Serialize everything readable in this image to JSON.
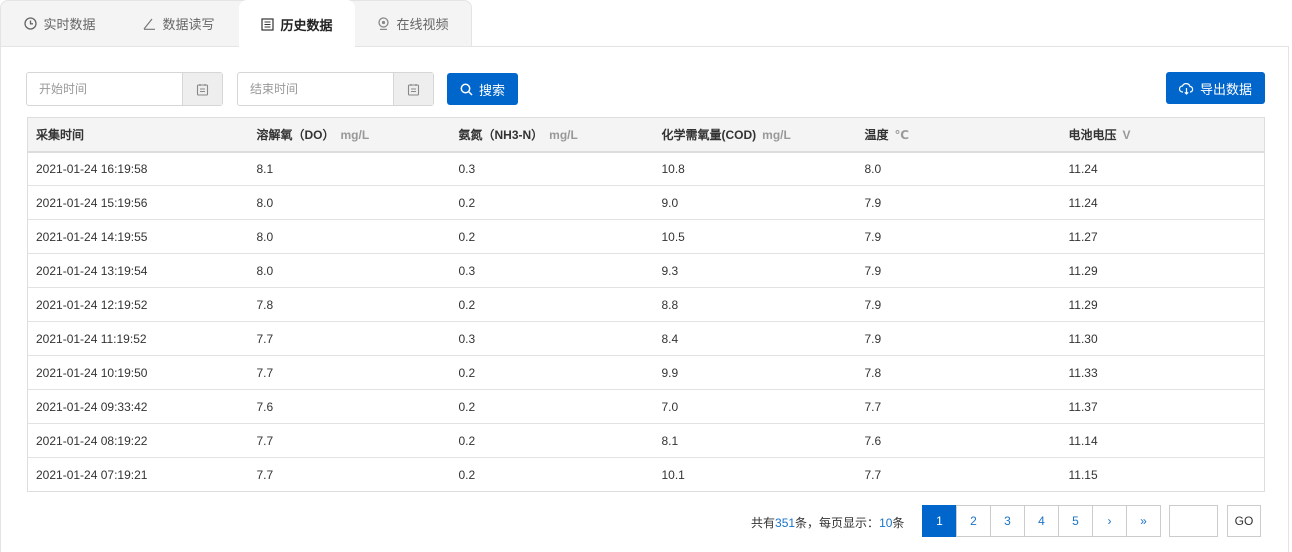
{
  "tabs": [
    {
      "label": "实时数据",
      "icon": "clock-icon"
    },
    {
      "label": "数据读写",
      "icon": "pen-icon"
    },
    {
      "label": "历史数据",
      "icon": "list-icon",
      "active": true
    },
    {
      "label": "在线视频",
      "icon": "webcam-icon"
    }
  ],
  "filters": {
    "start_placeholder": "开始时间",
    "end_placeholder": "结束时间",
    "search_label": "搜索",
    "export_label": "导出数据"
  },
  "table": {
    "columns": [
      {
        "label": "采集时间",
        "unit": ""
      },
      {
        "label": "溶解氧（DO）",
        "unit": "mg/L"
      },
      {
        "label": "氨氮（NH3-N）",
        "unit": "mg/L"
      },
      {
        "label": "化学需氧量(COD)",
        "unit": "mg/L"
      },
      {
        "label": "温度",
        "unit": "℃"
      },
      {
        "label": "电池电压",
        "unit": "V"
      }
    ],
    "rows": [
      [
        "2021-01-24 16:19:58",
        "8.1",
        "0.3",
        "10.8",
        "8.0",
        "11.24"
      ],
      [
        "2021-01-24 15:19:56",
        "8.0",
        "0.2",
        "9.0",
        "7.9",
        "11.24"
      ],
      [
        "2021-01-24 14:19:55",
        "8.0",
        "0.2",
        "10.5",
        "7.9",
        "11.27"
      ],
      [
        "2021-01-24 13:19:54",
        "8.0",
        "0.3",
        "9.3",
        "7.9",
        "11.29"
      ],
      [
        "2021-01-24 12:19:52",
        "7.8",
        "0.2",
        "8.8",
        "7.9",
        "11.29"
      ],
      [
        "2021-01-24 11:19:52",
        "7.7",
        "0.3",
        "8.4",
        "7.9",
        "11.30"
      ],
      [
        "2021-01-24 10:19:50",
        "7.7",
        "0.2",
        "9.9",
        "7.8",
        "11.33"
      ],
      [
        "2021-01-24 09:33:42",
        "7.6",
        "0.2",
        "7.0",
        "7.7",
        "11.37"
      ],
      [
        "2021-01-24 08:19:22",
        "7.7",
        "0.2",
        "8.1",
        "7.6",
        "11.14"
      ],
      [
        "2021-01-24 07:19:21",
        "7.7",
        "0.2",
        "10.1",
        "7.7",
        "11.15"
      ]
    ]
  },
  "pagination": {
    "prefix": "共有",
    "total": "351",
    "mid": "条，每页显示：",
    "per_page": "10",
    "suffix": "条",
    "pages": [
      "1",
      "2",
      "3",
      "4",
      "5",
      "›",
      "»"
    ],
    "current": "1",
    "goto_value": "",
    "go_label": "GO"
  },
  "colors": {
    "primary": "#0066cc"
  }
}
